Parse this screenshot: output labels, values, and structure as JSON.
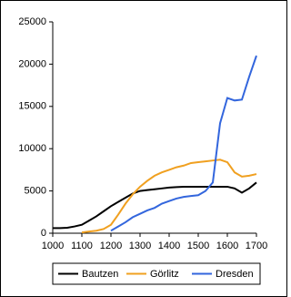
{
  "chart_data": {
    "type": "line",
    "x": [
      1000,
      1025,
      1050,
      1075,
      1100,
      1125,
      1150,
      1175,
      1200,
      1225,
      1250,
      1275,
      1300,
      1325,
      1350,
      1375,
      1400,
      1425,
      1450,
      1475,
      1500,
      1525,
      1550,
      1575,
      1600,
      1625,
      1650,
      1675,
      1700
    ],
    "series": [
      {
        "name": "Bautzen",
        "color": "#000000",
        "values": [
          600,
          600,
          650,
          800,
          1000,
          1500,
          2000,
          2600,
          3200,
          3700,
          4200,
          4700,
          5000,
          5100,
          5200,
          5300,
          5400,
          5450,
          5500,
          5500,
          5500,
          5500,
          5500,
          5500,
          5500,
          5300,
          4800,
          5300,
          6000
        ]
      },
      {
        "name": "Görlitz",
        "color": "#f0a020",
        "values": [
          null,
          null,
          null,
          null,
          100,
          200,
          300,
          500,
          1000,
          2200,
          3500,
          4600,
          5500,
          6200,
          6800,
          7200,
          7500,
          7800,
          8000,
          8300,
          8400,
          8500,
          8600,
          8700,
          8400,
          7200,
          6700,
          6800,
          7000
        ]
      },
      {
        "name": "Dresden",
        "color": "#3366dd",
        "values": [
          null,
          null,
          null,
          null,
          null,
          null,
          null,
          null,
          300,
          800,
          1300,
          1900,
          2300,
          2700,
          3000,
          3500,
          3800,
          4100,
          4300,
          4400,
          4500,
          5000,
          6000,
          13000,
          16000,
          15700,
          15800,
          18500,
          21000
        ]
      }
    ],
    "xlim": [
      1000,
      1700
    ],
    "xticks": [
      1000,
      1100,
      1200,
      1300,
      1400,
      1500,
      1600,
      1700
    ],
    "ylim": [
      0,
      25000
    ],
    "yticks": [
      0,
      5000,
      10000,
      15000,
      20000,
      25000
    ],
    "legend": "bottom"
  }
}
